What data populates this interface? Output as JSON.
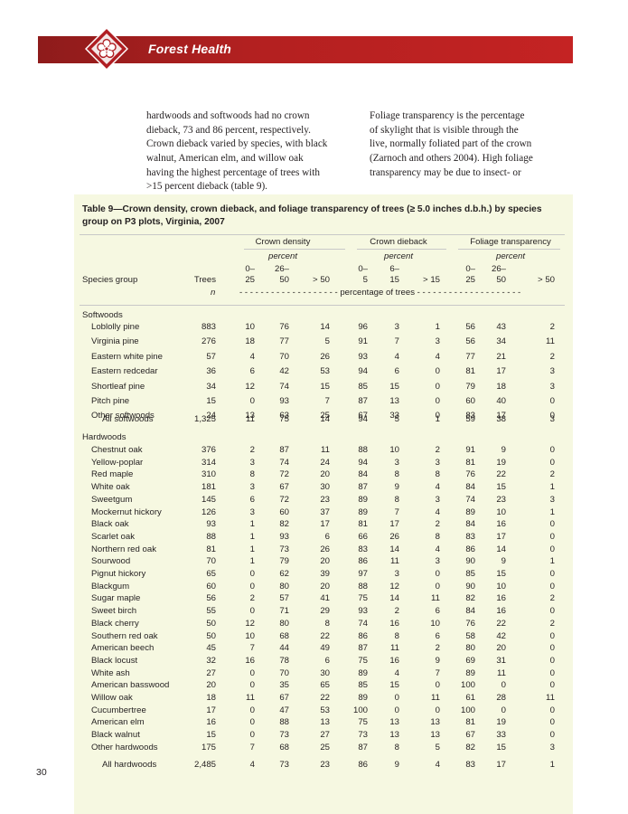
{
  "header": {
    "section_title": "Forest Health"
  },
  "body_text": {
    "left_lines": [
      "hardwoods and softwoods had no crown",
      "dieback, 73 and 86 percent, respectively.",
      "Crown dieback varied by species, with black",
      "walnut, American elm, and willow oak",
      "having the highest percentage of trees with",
      ">15 percent dieback (table 9)."
    ],
    "right_lines": [
      "Foliage transparency is the percentage",
      "of skylight that is visible through the",
      "live, normally foliated part of the crown",
      "(Zarnoch and others 2004). High foliage",
      "transparency may be due to insect- or"
    ]
  },
  "table": {
    "caption_line1": "Table 9—Crown density, crown dieback, and foliage transparency of trees (≥ 5.0 inches d.b.h.) by species",
    "caption_line2": "group on P3 plots, Virginia, 2007",
    "group_headers": [
      "Crown density",
      "Crown dieback",
      "Foliage transparency"
    ],
    "group_units": [
      "percent",
      "percent",
      "percent"
    ],
    "col_species": "Species group",
    "col_trees": "Trees",
    "sub_top": [
      "0–",
      "26–",
      "",
      "0–",
      "6–",
      "",
      "0–",
      "26–",
      ""
    ],
    "sub_bottom": [
      "25",
      "50",
      "> 50",
      "5",
      "15",
      "> 15",
      "25",
      "50",
      "> 50"
    ],
    "unit_n": "n",
    "unit_pct": "- - - - - - - - - - - - - - - - - - - percentage of trees - - - - - - - - - - - - - - - - - - - -",
    "softwoods": {
      "label": "Softwoods",
      "rows": [
        {
          "name": "Loblolly pine",
          "trees": "883",
          "v": [
            "10",
            "76",
            "14",
            "96",
            "3",
            "1",
            "56",
            "43",
            "2"
          ]
        },
        {
          "name": "Virginia pine",
          "trees": "276",
          "v": [
            "18",
            "77",
            "5",
            "91",
            "7",
            "3",
            "56",
            "34",
            "11"
          ]
        },
        {
          "name": "Eastern white pine",
          "trees": "57",
          "v": [
            "4",
            "70",
            "26",
            "93",
            "4",
            "4",
            "77",
            "21",
            "2"
          ]
        },
        {
          "name": "Eastern redcedar",
          "trees": "36",
          "v": [
            "6",
            "42",
            "53",
            "94",
            "6",
            "0",
            "81",
            "17",
            "3"
          ]
        },
        {
          "name": "Shortleaf pine",
          "trees": "34",
          "v": [
            "12",
            "74",
            "15",
            "85",
            "15",
            "0",
            "79",
            "18",
            "3"
          ]
        },
        {
          "name": "Pitch pine",
          "trees": "15",
          "v": [
            "0",
            "93",
            "7",
            "87",
            "13",
            "0",
            "60",
            "40",
            "0"
          ]
        },
        {
          "name": "Other softwoods",
          "trees": "24",
          "v": [
            "13",
            "63",
            "25",
            "67",
            "33",
            "0",
            "83",
            "17",
            "0"
          ]
        }
      ],
      "total": {
        "name": "All softwoods",
        "trees": "1,325",
        "v": [
          "11",
          "75",
          "14",
          "94",
          "5",
          "1",
          "59",
          "38",
          "3"
        ]
      }
    },
    "hardwoods": {
      "label": "Hardwoods",
      "rows": [
        {
          "name": "Chestnut oak",
          "trees": "376",
          "v": [
            "2",
            "87",
            "11",
            "88",
            "10",
            "2",
            "91",
            "9",
            "0"
          ]
        },
        {
          "name": "Yellow-poplar",
          "trees": "314",
          "v": [
            "3",
            "74",
            "24",
            "94",
            "3",
            "3",
            "81",
            "19",
            "0"
          ]
        },
        {
          "name": "Red maple",
          "trees": "310",
          "v": [
            "8",
            "72",
            "20",
            "84",
            "8",
            "8",
            "76",
            "22",
            "2"
          ]
        },
        {
          "name": "White oak",
          "trees": "181",
          "v": [
            "3",
            "67",
            "30",
            "87",
            "9",
            "4",
            "84",
            "15",
            "1"
          ]
        },
        {
          "name": "Sweetgum",
          "trees": "145",
          "v": [
            "6",
            "72",
            "23",
            "89",
            "8",
            "3",
            "74",
            "23",
            "3"
          ]
        },
        {
          "name": "Mockernut hickory",
          "trees": "126",
          "v": [
            "3",
            "60",
            "37",
            "89",
            "7",
            "4",
            "89",
            "10",
            "1"
          ]
        },
        {
          "name": "Black oak",
          "trees": "93",
          "v": [
            "1",
            "82",
            "17",
            "81",
            "17",
            "2",
            "84",
            "16",
            "0"
          ]
        },
        {
          "name": "Scarlet oak",
          "trees": "88",
          "v": [
            "1",
            "93",
            "6",
            "66",
            "26",
            "8",
            "83",
            "17",
            "0"
          ]
        },
        {
          "name": "Northern red oak",
          "trees": "81",
          "v": [
            "1",
            "73",
            "26",
            "83",
            "14",
            "4",
            "86",
            "14",
            "0"
          ]
        },
        {
          "name": "Sourwood",
          "trees": "70",
          "v": [
            "1",
            "79",
            "20",
            "86",
            "11",
            "3",
            "90",
            "9",
            "1"
          ]
        },
        {
          "name": "Pignut hickory",
          "trees": "65",
          "v": [
            "0",
            "62",
            "39",
            "97",
            "3",
            "0",
            "85",
            "15",
            "0"
          ]
        },
        {
          "name": "Blackgum",
          "trees": "60",
          "v": [
            "0",
            "80",
            "20",
            "88",
            "12",
            "0",
            "90",
            "10",
            "0"
          ]
        },
        {
          "name": "Sugar maple",
          "trees": "56",
          "v": [
            "2",
            "57",
            "41",
            "75",
            "14",
            "11",
            "82",
            "16",
            "2"
          ]
        },
        {
          "name": "Sweet birch",
          "trees": "55",
          "v": [
            "0",
            "71",
            "29",
            "93",
            "2",
            "6",
            "84",
            "16",
            "0"
          ]
        },
        {
          "name": "Black cherry",
          "trees": "50",
          "v": [
            "12",
            "80",
            "8",
            "74",
            "16",
            "10",
            "76",
            "22",
            "2"
          ]
        },
        {
          "name": "Southern red oak",
          "trees": "50",
          "v": [
            "10",
            "68",
            "22",
            "86",
            "8",
            "6",
            "58",
            "42",
            "0"
          ]
        },
        {
          "name": "American beech",
          "trees": "45",
          "v": [
            "7",
            "44",
            "49",
            "87",
            "11",
            "2",
            "80",
            "20",
            "0"
          ]
        },
        {
          "name": "Black locust",
          "trees": "32",
          "v": [
            "16",
            "78",
            "6",
            "75",
            "16",
            "9",
            "69",
            "31",
            "0"
          ]
        },
        {
          "name": "White ash",
          "trees": "27",
          "v": [
            "0",
            "70",
            "30",
            "89",
            "4",
            "7",
            "89",
            "11",
            "0"
          ]
        },
        {
          "name": "American basswood",
          "trees": "20",
          "v": [
            "0",
            "35",
            "65",
            "85",
            "15",
            "0",
            "100",
            "0",
            "0"
          ]
        },
        {
          "name": "Willow oak",
          "trees": "18",
          "v": [
            "11",
            "67",
            "22",
            "89",
            "0",
            "11",
            "61",
            "28",
            "11"
          ]
        },
        {
          "name": "Cucumbertree",
          "trees": "17",
          "v": [
            "0",
            "47",
            "53",
            "100",
            "0",
            "0",
            "100",
            "0",
            "0"
          ]
        },
        {
          "name": "American elm",
          "trees": "16",
          "v": [
            "0",
            "88",
            "13",
            "75",
            "13",
            "13",
            "81",
            "19",
            "0"
          ]
        },
        {
          "name": "Black walnut",
          "trees": "15",
          "v": [
            "0",
            "73",
            "27",
            "73",
            "13",
            "13",
            "67",
            "33",
            "0"
          ]
        },
        {
          "name": "Other hardwoods",
          "trees": "175",
          "v": [
            "7",
            "68",
            "25",
            "87",
            "8",
            "5",
            "82",
            "15",
            "3"
          ]
        }
      ],
      "total": {
        "name": "All hardwoods",
        "trees": "2,485",
        "v": [
          "4",
          "73",
          "23",
          "86",
          "9",
          "4",
          "83",
          "17",
          "1"
        ]
      }
    }
  },
  "page_number": "30"
}
